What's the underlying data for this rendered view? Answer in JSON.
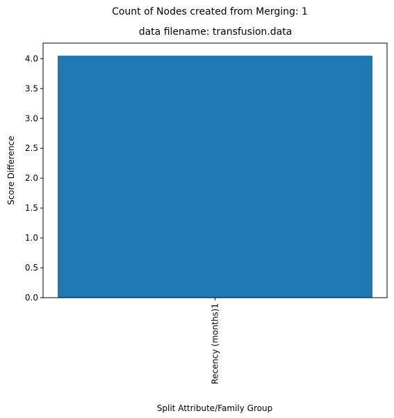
{
  "chart_data": {
    "type": "bar",
    "suptitle": "Count of Nodes created from Merging: 1",
    "title": "data filename: transfusion.data",
    "xlabel": "Split Attribute/Family Group",
    "ylabel": "Score Difference",
    "categories": [
      "Recency (months)1"
    ],
    "values": [
      4.05
    ],
    "ylim": [
      0,
      4.26
    ],
    "yticks": [
      0.0,
      0.5,
      1.0,
      1.5,
      2.0,
      2.5,
      3.0,
      3.5,
      4.0
    ],
    "ytick_labels": [
      "0.0",
      "0.5",
      "1.0",
      "1.5",
      "2.0",
      "2.5",
      "3.0",
      "3.5",
      "4.0"
    ],
    "grid": false,
    "legend": "none",
    "bar_color": "#1f77b4"
  }
}
